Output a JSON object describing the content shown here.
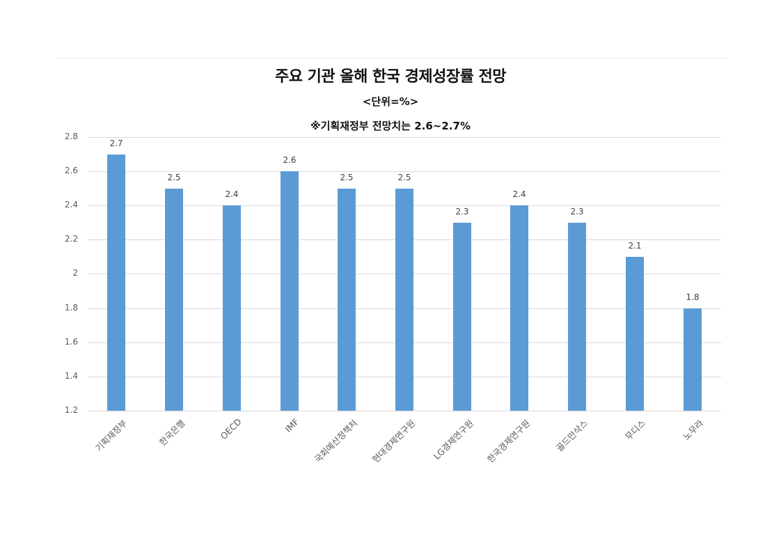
{
  "chart_data": {
    "type": "bar",
    "title": "주요 기관 올해 한국 경제성장률 전망",
    "subtitle": "<단위=%>",
    "note": "※기획재정부 전망치는 2.6~2.7%",
    "xlabel": "",
    "ylabel": "",
    "ylim": [
      1.2,
      2.8
    ],
    "yticks": [
      "2.8",
      "2.6",
      "2.4",
      "2.2",
      "2",
      "1.8",
      "1.6",
      "1.4",
      "1.2"
    ],
    "grid": true,
    "legend": "none",
    "bar_color": "#5b9bd5",
    "categories": [
      "기획재정부",
      "한국은행",
      "OECD",
      "IMF",
      "국회예산정책처",
      "현대경제연구원",
      "LG경제연구원",
      "한국경제연구원",
      "골드만삭스",
      "무디스",
      "노무라"
    ],
    "values": [
      2.7,
      2.5,
      2.4,
      2.6,
      2.5,
      2.5,
      2.3,
      2.4,
      2.3,
      2.1,
      1.8
    ],
    "value_labels": [
      "2.7",
      "2.5",
      "2.4",
      "2.6",
      "2.5",
      "2.5",
      "2.3",
      "2.4",
      "2.3",
      "2.1",
      "1.8"
    ]
  }
}
